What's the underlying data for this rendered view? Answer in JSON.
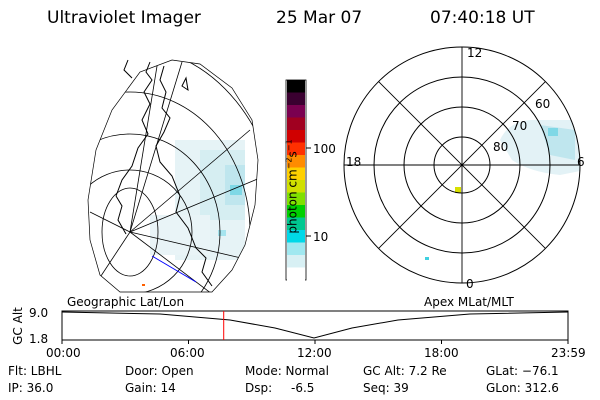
{
  "header": {
    "instrument": "Ultraviolet Imager",
    "date": "25 Mar 07",
    "time": "07:40:18 UT"
  },
  "colorbar": {
    "label_parts": [
      "photon cm",
      "−2",
      "s",
      "−1"
    ],
    "ticks": [
      "100",
      "10"
    ],
    "colors": [
      "#000000",
      "#3a0030",
      "#7a0050",
      "#a00020",
      "#d00000",
      "#ff3000",
      "#ff8c00",
      "#ffd000",
      "#d0e000",
      "#80e000",
      "#00d000",
      "#00c890",
      "#00d8e8",
      "#a0e8f0",
      "#d8f0f4",
      "#ffffff"
    ]
  },
  "left_map": {
    "label": "Geographic Lat/Lon"
  },
  "polar_plot": {
    "label": "Apex MLat/MLT",
    "mlt_labels": [
      "12",
      "6",
      "0",
      "18"
    ],
    "lat_labels": [
      "60",
      "70",
      "80"
    ]
  },
  "timeline": {
    "ylabel": "GC Alt",
    "yticks": [
      "9.0",
      "1.8"
    ],
    "xticks": [
      "00:00",
      "06:00",
      "12:00",
      "18:00",
      "23:59"
    ],
    "current_time_hours": 7.67,
    "marker_color": "#ff0000"
  },
  "status": {
    "flt": "Flt: LBHL",
    "ip": "IP: 36.0",
    "door": "Door: Open",
    "gain": "Gain: 14",
    "mode": "Mode: Normal",
    "dsp_label": "Dsp:",
    "dsp_value": "-6.5",
    "gc_alt": "GC Alt: 7.2 Re",
    "seq": "Seq: 39",
    "glat": "GLat: −76.1",
    "glon": "GLon: 312.6"
  }
}
